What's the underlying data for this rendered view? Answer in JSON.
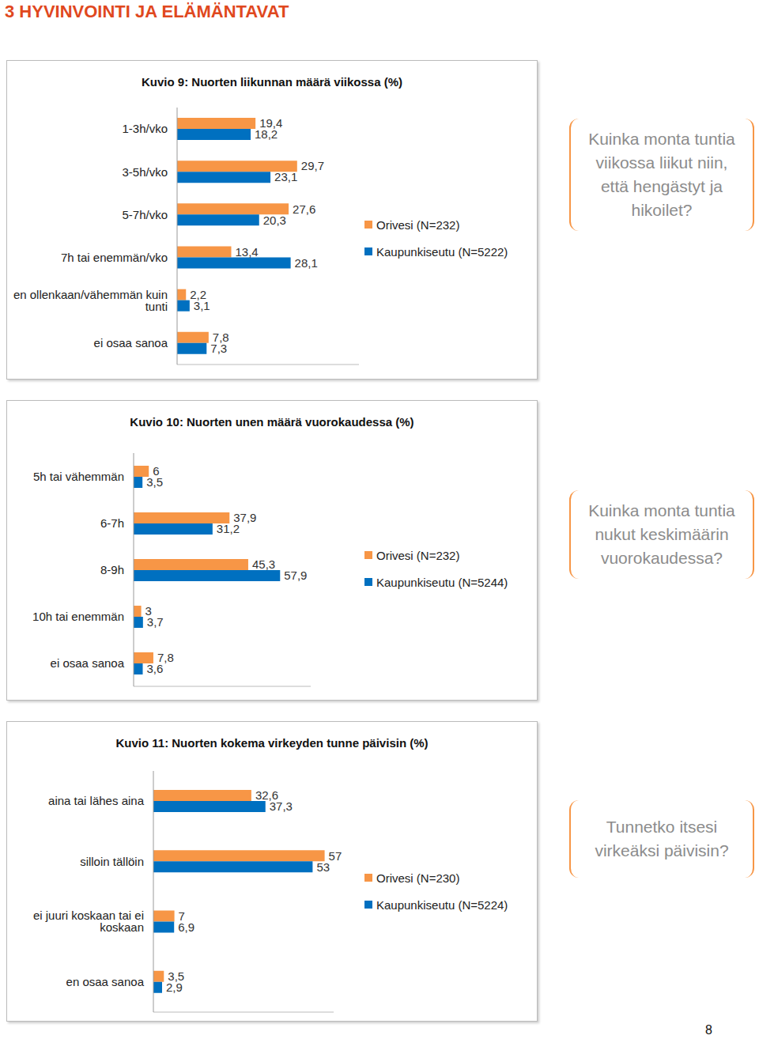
{
  "header": "3 HYVINVOINTI JA ELÄMÄNTAVAT",
  "page_number": "8",
  "chart_data": [
    {
      "type": "bar",
      "orientation": "horizontal",
      "title": "Kuvio 9: Nuorten liikunnan määrä viikossa (%)",
      "annotation": "Kuinka monta tuntia viikossa liikut niin, että hengästyt ja hikoilet?",
      "categories": [
        "1-3h/vko",
        "3-5h/vko",
        "5-7h/vko",
        "7h tai enemmän/vko",
        "en ollenkaan/vähemmän kuin tunti",
        "ei osaa sanoa"
      ],
      "series": [
        {
          "name": "Orivesi (N=232)",
          "color": "#f79646",
          "values": [
            19.4,
            29.7,
            27.6,
            13.4,
            2.2,
            7.8
          ],
          "value_labels": [
            "19,4",
            "29,7",
            "27,6",
            "13,4",
            "2,2",
            "7,8"
          ]
        },
        {
          "name": "Kaupunkiseutu (N=5222)",
          "color": "#0070c0",
          "values": [
            18.2,
            23.1,
            20.3,
            28.1,
            3.1,
            7.3
          ],
          "value_labels": [
            "18,2",
            "23,1",
            "20,3",
            "28,1",
            "3,1",
            "7,3"
          ]
        }
      ],
      "xlim": [
        0,
        45
      ],
      "data_labels": true,
      "tick_labels": "y",
      "legend": "right",
      "grid": false
    },
    {
      "type": "bar",
      "orientation": "horizontal",
      "title": "Kuvio 10: Nuorten unen määrä vuorokaudessa (%)",
      "annotation": "Kuinka monta tuntia nukut keskimäärin vuorokaudessa?",
      "categories": [
        "5h tai vähemmän",
        "6-7h",
        "8-9h",
        "10h tai enemmän",
        "ei osaa sanoa"
      ],
      "series": [
        {
          "name": "Orivesi (N=232)",
          "color": "#f79646",
          "values": [
            6,
            37.9,
            45.3,
            3,
            7.8
          ],
          "value_labels": [
            "6",
            "37,9",
            "45,3",
            "3",
            "7,8"
          ]
        },
        {
          "name": "Kaupunkiseutu (N=5244)",
          "color": "#0070c0",
          "values": [
            3.5,
            31.2,
            57.9,
            3.7,
            3.6
          ],
          "value_labels": [
            "3,5",
            "31,2",
            "57,9",
            "3,7",
            "3,6"
          ]
        }
      ],
      "xlim": [
        0,
        70
      ],
      "data_labels": true,
      "tick_labels": "y",
      "legend": "right",
      "grid": false
    },
    {
      "type": "bar",
      "orientation": "horizontal",
      "title": "Kuvio 11: Nuorten kokema virkeyden tunne päivisin (%)",
      "annotation": "Tunnetko itsesi virkeäksi päivisin?",
      "categories": [
        "aina tai lähes aina",
        "silloin tällöin",
        "ei juuri koskaan tai ei koskaan",
        "en osaa sanoa"
      ],
      "series": [
        {
          "name": "Orivesi (N=230)",
          "color": "#f79646",
          "values": [
            32.6,
            57,
            7,
            3.5
          ],
          "value_labels": [
            "32,6",
            "57",
            "7",
            "3,5"
          ]
        },
        {
          "name": "Kaupunkiseutu (N=5224)",
          "color": "#0070c0",
          "values": [
            37.3,
            53,
            6.9,
            2.9
          ],
          "value_labels": [
            "37,3",
            "53",
            "6,9",
            "2,9"
          ]
        }
      ],
      "xlim": [
        0,
        60
      ],
      "data_labels": true,
      "tick_labels": "y",
      "legend": "right",
      "grid": false
    }
  ]
}
